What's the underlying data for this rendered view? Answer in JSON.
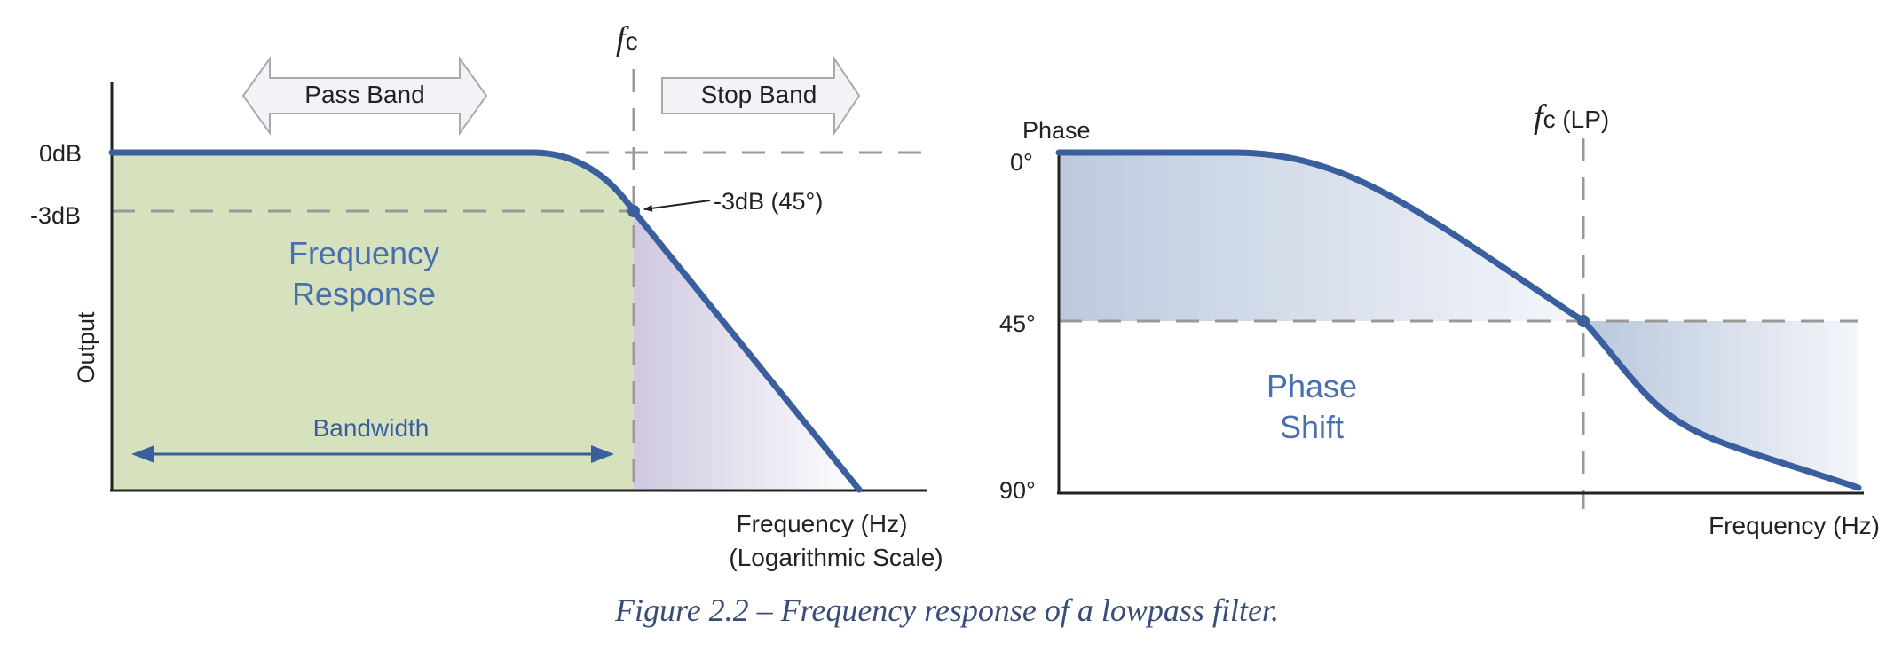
{
  "response_plot": {
    "fc_symbol": "f",
    "fc_subscript": "c",
    "pass_band_label": "Pass Band",
    "stop_band_label": "Stop Band",
    "y_tick_0db": "0dB",
    "y_tick_minus3db": "-3dB",
    "y_axis_label": "Output",
    "marker_label": "-3dB (45°)",
    "region_label_line1": "Frequency",
    "region_label_line2": "Response",
    "bandwidth_label": "Bandwidth",
    "x_axis_label_line1": "Frequency (Hz)",
    "x_axis_label_line2": "(Logarithmic Scale)"
  },
  "phase_plot": {
    "fc_symbol": "f",
    "fc_subscript": "c (LP)",
    "y_axis_label": "Phase",
    "y_tick_0": "0°",
    "y_tick_45": "45°",
    "y_tick_90": "90°",
    "region_label_line1": "Phase",
    "region_label_line2": "Shift",
    "x_axis_label": "Frequency (Hz)"
  },
  "caption": "Figure 2.2 – Frequency response of a lowpass filter.",
  "colors": {
    "curve": "#3a5f9e",
    "passband_fill": "#d6e2bd",
    "label_blue": "#4a6fae",
    "dashed_line": "#999999",
    "arrow_fill": "#f2f2f7"
  }
}
